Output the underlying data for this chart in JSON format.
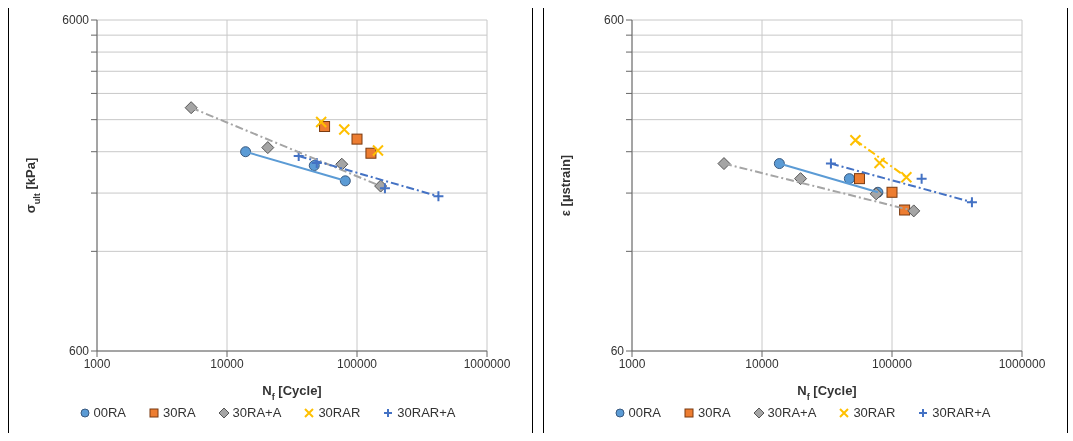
{
  "chart_data": [
    {
      "type": "scatter",
      "xlabel": "N$_{f}$ [Cycle]",
      "ylabel": "σ$_{ult}$ [kPa]",
      "log": "xy",
      "grid": true,
      "legend": "bottom",
      "xlim": [
        1000,
        1000000
      ],
      "xticks": [
        1000,
        10000,
        100000,
        1000000
      ],
      "ylim": [
        600,
        6000
      ],
      "yticks": [
        600,
        {
          "value": 1200,
          "label": null
        },
        {
          "value": 1800,
          "label": null
        },
        {
          "value": 2400,
          "label": null
        },
        {
          "value": 3000,
          "label": null
        },
        {
          "value": 3600,
          "label": null
        },
        {
          "value": 4200,
          "label": null
        },
        {
          "value": 4800,
          "label": null
        },
        {
          "value": 5400,
          "label": null
        },
        6000
      ],
      "series": [
        {
          "name": "00RA",
          "color": "#5b9bd5",
          "marker": "circle",
          "x": [
            13900,
            46900,
            81300
          ],
          "values": [
            2400,
            2180,
            1960
          ]
        },
        {
          "name": "30RA",
          "color": "#ed7d31",
          "marker": "square",
          "x": [
            56300,
            100000,
            128000
          ],
          "values": [
            2860,
            2620,
            2375
          ]
        },
        {
          "name": "30RA+A",
          "color": "#a5a5a5",
          "marker": "diamond",
          "x": [
            5300,
            20600,
            76400,
            152000
          ],
          "values": [
            3260,
            2470,
            2200,
            1890
          ]
        },
        {
          "name": "30RAR",
          "color": "#ffc000",
          "marker": "cross",
          "x": [
            53000,
            79800,
            145000
          ],
          "values": [
            2950,
            2800,
            2420
          ]
        },
        {
          "name": "30RAR+A",
          "color": "#4472c4",
          "marker": "plus",
          "x": [
            35600,
            49000,
            164000,
            423000
          ],
          "values": [
            2330,
            2220,
            1860,
            1760
          ]
        },
        {
          "type": "line",
          "color": "#5b9bd5",
          "line_style": "solid",
          "x": [
            13900,
            81300
          ],
          "values": [
            2400,
            1960
          ]
        },
        {
          "type": "line",
          "color": "#a5a5a5",
          "line_style": "dashed",
          "x": [
            5300,
            152000
          ],
          "values": [
            3260,
            1890
          ]
        },
        {
          "type": "line",
          "color": "#4472c4",
          "line_style": "dashed",
          "x": [
            35600,
            423000
          ],
          "values": [
            2330,
            1760
          ]
        }
      ]
    },
    {
      "type": "scatter",
      "xlabel": "N$_{f}$ [Cycle]",
      "ylabel": "ε [µstrain]",
      "log": "xy",
      "grid": true,
      "legend": "bottom",
      "xlim": [
        1000,
        1000000
      ],
      "xticks": [
        1000,
        10000,
        100000,
        1000000
      ],
      "ylim": [
        60,
        600
      ],
      "yticks": [
        60,
        {
          "value": 120,
          "label": null
        },
        {
          "value": 180,
          "label": null
        },
        {
          "value": 240,
          "label": null
        },
        {
          "value": 300,
          "label": null
        },
        {
          "value": 360,
          "label": null
        },
        {
          "value": 420,
          "label": null
        },
        {
          "value": 480,
          "label": null
        },
        {
          "value": 540,
          "label": null
        },
        600
      ],
      "series": [
        {
          "name": "00RA",
          "color": "#5b9bd5",
          "marker": "circle",
          "x": [
            13600,
            47000,
            77900
          ],
          "values": [
            221,
            199,
            181
          ]
        },
        {
          "name": "30RA",
          "color": "#ed7d31",
          "marker": "square",
          "x": [
            56200,
            100000,
            125000
          ],
          "values": [
            199,
            181,
            160
          ]
        },
        {
          "name": "30RA+A",
          "color": "#a5a5a5",
          "marker": "diamond",
          "x": [
            5100,
            19800,
            75600,
            147000
          ],
          "values": [
            221,
            199,
            179,
            159
          ]
        },
        {
          "name": "30RAR",
          "color": "#ffc000",
          "marker": "cross",
          "x": [
            52300,
            80200,
            129000
          ],
          "values": [
            260,
            222,
            201
          ]
        },
        {
          "name": "30RAR+A",
          "color": "#4472c4",
          "marker": "plus",
          "x": [
            33900,
            169000,
            412000
          ],
          "values": [
            221,
            199,
            169
          ]
        },
        {
          "type": "line",
          "color": "#5b9bd5",
          "line_style": "solid",
          "x": [
            13600,
            77900
          ],
          "values": [
            221,
            181
          ]
        },
        {
          "type": "line",
          "color": "#a5a5a5",
          "line_style": "dashed",
          "x": [
            5100,
            147000
          ],
          "values": [
            221,
            159
          ]
        },
        {
          "type": "line",
          "color": "#ffc000",
          "line_style": "dashed",
          "x": [
            52300,
            129000
          ],
          "values": [
            260,
            201
          ]
        },
        {
          "type": "line",
          "color": "#4472c4",
          "line_style": "dashed",
          "x": [
            33900,
            412000
          ],
          "values": [
            221,
            169
          ]
        }
      ]
    }
  ]
}
